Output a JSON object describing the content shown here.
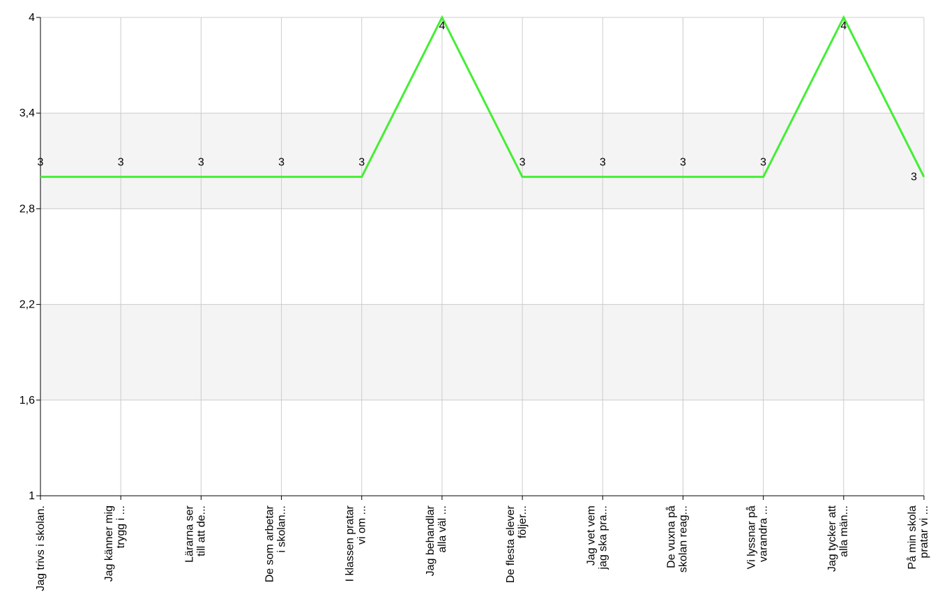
{
  "chart_data": {
    "type": "line",
    "title": "",
    "xlabel": "",
    "ylabel": "",
    "ylim": [
      1,
      4
    ],
    "yticks": [
      "1",
      "1,6",
      "2,2",
      "2,8",
      "3,4",
      "4"
    ],
    "categories": [
      [
        "Jag trivs i skolan."
      ],
      [
        "Jag känner  mig",
        "trygg i ..."
      ],
      [
        "Lärarna ser",
        "till att de..."
      ],
      [
        "De som arbetar",
        "i skolan..."
      ],
      [
        "I klassen pratar",
        "vi om ..."
      ],
      [
        "Jag behandlar",
        "alla väl ..."
      ],
      [
        "De flesta elever",
        "följer..."
      ],
      [
        "Jag vet vem",
        "jag ska pra..."
      ],
      [
        "De vuxna på",
        "skolan reag..."
      ],
      [
        "Vi lyssnar på",
        "varandra ..."
      ],
      [
        "Jag tycker att",
        "alla män..."
      ],
      [
        "På min skola",
        "pratar vi ..."
      ]
    ],
    "series": [
      {
        "values": [
          3,
          3,
          3,
          3,
          3,
          4,
          3,
          3,
          3,
          3,
          4,
          3
        ],
        "data_labels": [
          "3",
          "3",
          "3",
          "3",
          "3",
          "4",
          "3",
          "3",
          "3",
          "3",
          "4",
          "3"
        ],
        "color": "#44ee33"
      }
    ],
    "band_color": "#f4f4f4",
    "grid_color": "#cccccc",
    "grid": true
  }
}
